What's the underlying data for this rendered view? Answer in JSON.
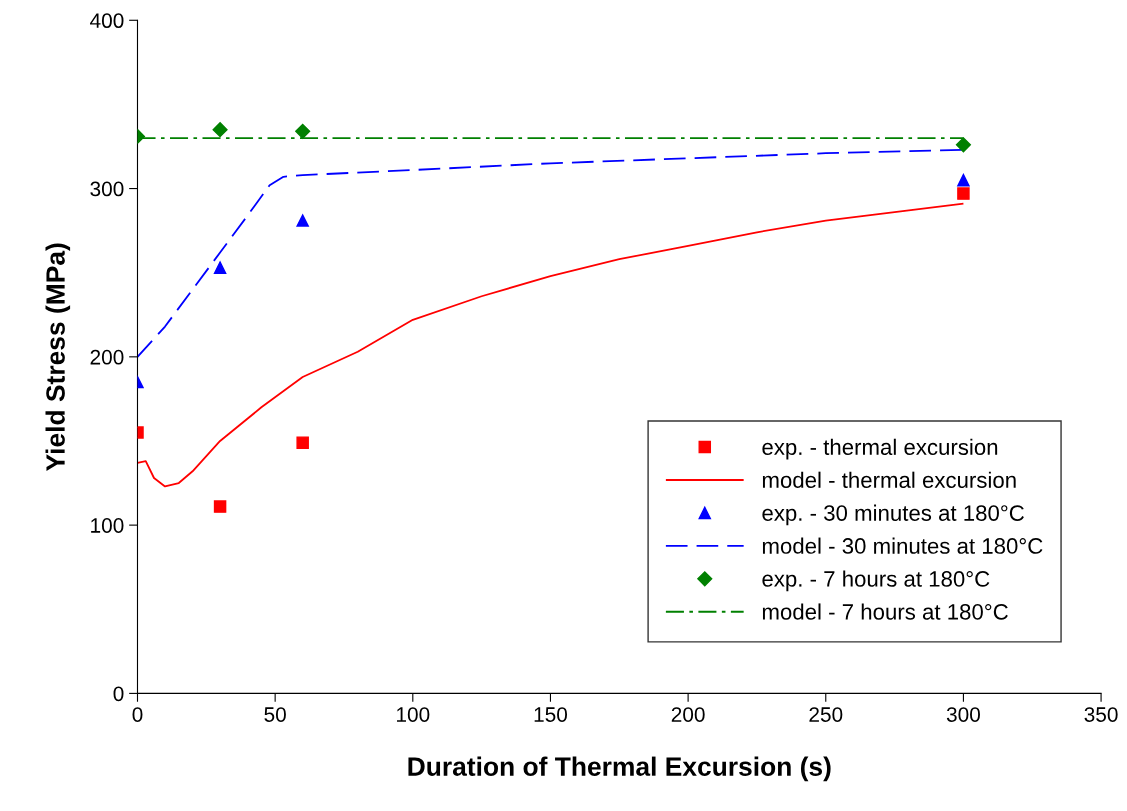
{
  "chart_data": {
    "type": "scatter",
    "xlabel": "Duration of Thermal Excursion (s)",
    "ylabel": "Yield Stress (MPa)",
    "xlim": [
      0,
      350
    ],
    "xticks": [
      0,
      50,
      100,
      150,
      200,
      250,
      300,
      350
    ],
    "ylim": [
      0,
      400
    ],
    "yticks": [
      0,
      100,
      200,
      300,
      400
    ],
    "grid": false,
    "legend": "bottom right",
    "series": [
      {
        "name": "exp. - thermal excursion",
        "type": "scatter",
        "marker": "square",
        "color": "#ff0000",
        "x": [
          0,
          30,
          60,
          300
        ],
        "values": [
          155,
          111,
          149,
          297
        ]
      },
      {
        "name": "model - thermal excursion",
        "type": "line",
        "marker": "none",
        "line_style": "solid",
        "color": "#ff0000",
        "x": [
          0,
          3,
          6,
          10,
          15,
          20,
          30,
          45,
          60,
          80,
          100,
          125,
          150,
          175,
          200,
          225,
          250,
          275,
          300
        ],
        "values": [
          137,
          138,
          128,
          123,
          125,
          132,
          150,
          170,
          188,
          203,
          222,
          236,
          248,
          258,
          266,
          274,
          281,
          286,
          291
        ]
      },
      {
        "name": "exp. - 30 minutes at 180°C",
        "type": "scatter",
        "marker": "triangle",
        "color": "#0000ff",
        "x": [
          0,
          30,
          60,
          300
        ],
        "values": [
          185,
          253,
          281,
          305
        ]
      },
      {
        "name": "model - 30 minutes at 180°C",
        "type": "line",
        "marker": "none",
        "line_style": "dashed",
        "color": "#0000ff",
        "x": [
          0,
          10,
          20,
          30,
          40,
          48,
          53,
          60,
          100,
          150,
          200,
          250,
          300
        ],
        "values": [
          200,
          218,
          240,
          262,
          284,
          302,
          307,
          308,
          311,
          315,
          318,
          321,
          323
        ]
      },
      {
        "name": "exp. - 7 hours at 180°C",
        "type": "scatter",
        "marker": "diamond",
        "color": "#008000",
        "x": [
          0,
          30,
          60,
          300
        ],
        "values": [
          331,
          335,
          334,
          326
        ]
      },
      {
        "name": "model - 7 hours at 180°C",
        "type": "line",
        "marker": "none",
        "line_style": "dashdot",
        "color": "#008000",
        "x": [
          0,
          300
        ],
        "values": [
          330,
          330
        ]
      }
    ]
  }
}
